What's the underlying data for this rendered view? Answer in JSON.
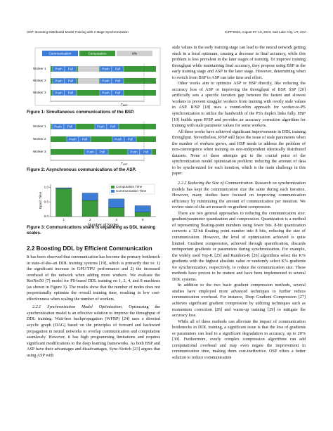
{
  "header": {
    "left": "OSP: Boosting Distributed Model Training with 2-stage Synchronization",
    "right": "ICPP'2023, August 07–10, 2023, Salt Lake City, UT, USA"
  },
  "figure1": {
    "legend": [
      "Communication",
      "Computation",
      "Idle"
    ],
    "workers": [
      {
        "label": "Worker 1",
        "blocks": [
          "Push",
          "Pull",
          "Push",
          "Pull"
        ]
      },
      {
        "label": "Worker 2",
        "blocks": [
          "Push",
          "Pull",
          "Push",
          "Pull"
        ]
      },
      {
        "label": "Worker 3",
        "blocks": [
          "Push",
          "Pull",
          "Push",
          "Pull"
        ]
      }
    ],
    "period": "T",
    "period_sub": "BSP",
    "caption": "Figure 1: Simultaneous communications of the BSP."
  },
  "figure2": {
    "workers": [
      {
        "label": "Worker 1",
        "blocks": [
          "Push",
          "Pull",
          "Push",
          "Pull"
        ]
      },
      {
        "label": "Worker 2",
        "blocks": [
          "Push",
          "Pull",
          "Push",
          "Pull"
        ]
      },
      {
        "label": "Worker 3",
        "blocks": [
          "Push",
          "Pull",
          "Push",
          "Pull"
        ]
      }
    ],
    "period": "T",
    "period_sub": "ASP",
    "caption": "Figure 2: Asynchronous communications of the ASP."
  },
  "chart_data": {
    "type": "bar",
    "stacked": true,
    "xlabel": "Number of Nodes",
    "ylabel": "Epoch Time",
    "categories": [
      "1",
      "2",
      "4",
      "8"
    ],
    "series": [
      {
        "name": "Computation Time",
        "color": "#3a9a3a",
        "values": [
          0.95,
          0.55,
          0.3,
          0.15
        ]
      },
      {
        "name": "Communication Time",
        "color": "#3b7dd8",
        "values": [
          0.03,
          0.25,
          0.3,
          0.22
        ]
      }
    ],
    "ylim": [
      0,
      1.1
    ],
    "yticks": [
      {
        "value": 0,
        "label": "0.0"
      },
      {
        "value": 0.5,
        "label": "0.5"
      },
      {
        "value": 1,
        "label": "1.0"
      }
    ],
    "legend": "upper right"
  },
  "figure3": {
    "caption": "Figure 3: Communications share is expanding as DDL training scales."
  },
  "left": {
    "heading": "2.2 Boosting DDL by Efficient Communication",
    "p1": "It has been observed that communication has become the primary bottleneck in state-of-the-art DDL training systems [19], which is primarily due to: 1) the significant increase in GPU/TPU performance and 2) the increased overhead of the network when adding more workers. We evaluate the ResNet50 [7] model for PS-based DDL training on 1, 2, 4, and 8 machines (as shown in Figure 3). The results show that the number of nodes does not proportionally optimize the overall training time, resulting in low cost-effectiveness when scaling the number of workers.",
    "sub1": "2.2.1 Synchronization Model Optimization.",
    "p2": "Optimizing the synchronization model is an effective solution to improve the throughput of DDL training. Wait-free backpropagation (WFBP) [24] uses a directed acyclic graph (DAG) based on the principles of forward and backward propagation in neural networks to overlap communication and computation seamlessly. However, it has high programming limitations and requires significant modifications to the deep learning frameworks. As both BSP and ASP have their advantages and disadvantages, Sync-Switch [23] argues that using ASP with"
  },
  "right": {
    "p1": "stale values in the early training stage can lead to the neural network getting stuck in a local optimum, causing a decrease in final accuracy, while this problem is less prevalent in the later stages of training. To improve training throughput while maintaining final accuracy, they propose using BSP in the early training stage and ASP in the later stage. However, determining when to switch from BSP to ASP can take time and effort.",
    "p2": "Other works aim to optimize ASP or BSP directly, like reducing the accuracy loss of ASP or improving the throughput of BSP. SSP [20] artificially sets a specific iteration gap between the fastest and slowest workers to prevent straggler workers from training with overly stale values in ASP. R²SP [18] uses a round-robin approach for worker-to-PS synchronization to utilize the bandwidth of the PS's duplex links fully. HSP [10] builds upon R²SP and provides an accuracy correction algorithm for training with stale parameter values for some workers.",
    "p3": "All these works have achieved significant improvements in DDL training throughput. Nevertheless, R²SP still faces the issue of stale parameters when the number of workers grows, and HSP needs to address the problem of non-convergence when training on non-independent identically distributed datasets. None of these attempts get to the crucial point of the synchronization model optimization problem: reducing the amount of data to be synchronized for each iteration, which is the main challenge in this paper.",
    "sub2": "2.2.2 Reducing the Size of Communication.",
    "p4": "Research on synchronization models has kept the communication size the same during each iteration. However, many studies have focused on improving communication efficiency by minimizing the amount of communication per iteration. We review state-of-the-art research on gradient compression.",
    "p5": "There are two general approaches to reducing the communication size: gradient/parameter quantization and compression. Quantization is a method of representing floating-point numbers using fewer bits. 8-bit quantization converts a 32-bit floating point number into 8 bits, reducing the size of communication. However, the level of optimization achieved is quite limited. Gradient compression, achieved through sparsification, discards unimportant gradients or parameters during synchronization. For example, the widely used Top-K [25] and Random-K [26] algorithms select the K% gradients with the highest absolute value or randomly select K% gradients for synchronization, respectively, to reduce the communication size. These methods have proven to be mature and have been implemented in several DDL systems.",
    "p6": "In addition to the two basic gradient compression methods, several studies have employed more advanced techniques to further reduce communication overhead. For instance, Deep Gradient Compression [27] achieves significant gradient compression by utilizing techniques such as momentum correction [28] and warm-up training [29] to mitigate the accuracy loss.",
    "p7": "While all of these methods can alleviate the impact of communication bottlenecks in DDL training, a significant issue is that the loss of gradients or parameters can lead to a significant degradation in accuracy, up to 20% [30]. Furthermore, overly complex compression algorithms can add computational overhead and may even negate the improvement in communication time, making them cost-ineffective. OSP offers a better solution to reduce communication"
  }
}
